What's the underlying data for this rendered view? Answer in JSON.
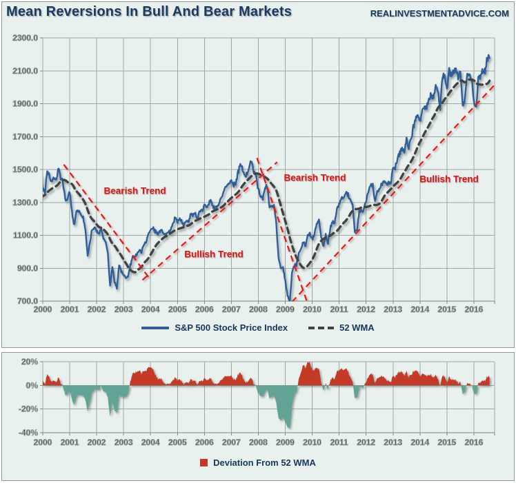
{
  "header": {
    "watermark": "REALINVESTMENTADVICE.COM"
  },
  "chart_data": [
    {
      "type": "line",
      "title": "Mean Reversions In Bull And Bear Markets",
      "x_unit": "monthly points, Jan 2000 - Aug 2016",
      "x_tick_labels": [
        "2000",
        "2001",
        "2002",
        "2003",
        "2004",
        "2005",
        "2006",
        "2007",
        "2008",
        "2009",
        "2010",
        "2011",
        "2012",
        "2013",
        "2014",
        "2015",
        "2016"
      ],
      "y_tick_labels": [
        "2300.0",
        "2100.0",
        "1900.0",
        "1700.0",
        "1500.0",
        "1300.0",
        "1100.0",
        "900.0",
        "700.0"
      ],
      "ylim": [
        700,
        2300
      ],
      "xlim_years_after_2000": [
        0,
        16.77
      ],
      "grid": true,
      "legend_position": "bottom-center",
      "series": [
        {
          "name": "S&P 500 Stock Price Index",
          "color": "#2f5e9b",
          "monthly_close": [
            1394,
            1366,
            1499,
            1452,
            1421,
            1455,
            1431,
            1518,
            1437,
            1429,
            1315,
            1320,
            1366,
            1240,
            1160,
            1249,
            1256,
            1224,
            1211,
            1134,
            970,
            1060,
            1139,
            1148,
            1130,
            1107,
            1147,
            1077,
            1067,
            990,
            790,
            912,
            815,
            778,
            920,
            880,
            856,
            841,
            848,
            917,
            964,
            975,
            990,
            1008,
            996,
            1051,
            1058,
            1112,
            1131,
            1145,
            1126,
            1107,
            1121,
            1141,
            1102,
            1104,
            1115,
            1130,
            1174,
            1212,
            1181,
            1204,
            1181,
            1157,
            1192,
            1191,
            1234,
            1220,
            1229,
            1207,
            1249,
            1248,
            1280,
            1281,
            1295,
            1311,
            1270,
            1270,
            1277,
            1304,
            1336,
            1378,
            1401,
            1418,
            1438,
            1407,
            1421,
            1482,
            1531,
            1503,
            1455,
            1474,
            1527,
            1549,
            1481,
            1468,
            1379,
            1331,
            1323,
            1386,
            1400,
            1280,
            1267,
            1283,
            1166,
            969,
            896,
            903,
            826,
            735,
            690,
            873,
            919,
            919,
            987,
            1021,
            1057,
            1036,
            1096,
            1115,
            1074,
            1104,
            1169,
            1187,
            1089,
            1031,
            1102,
            1049,
            1141,
            1183,
            1181,
            1258,
            1286,
            1327,
            1326,
            1364,
            1345,
            1321,
            1292,
            1123,
            1131,
            1253,
            1247,
            1258,
            1312,
            1366,
            1408,
            1398,
            1310,
            1362,
            1379,
            1407,
            1441,
            1412,
            1416,
            1426,
            1498,
            1515,
            1569,
            1598,
            1631,
            1606,
            1686,
            1633,
            1682,
            1757,
            1806,
            1848,
            1783,
            1859,
            1872,
            1884,
            1924,
            1960,
            1931,
            2003,
            1972,
            1880,
            2068,
            2059,
            1995,
            2105,
            2068,
            2086,
            2107,
            2063,
            2104,
            1890,
            1920,
            2079,
            2080,
            2044,
            1920,
            1865,
            2060,
            2065,
            2097,
            2099,
            2174,
            2183
          ]
        },
        {
          "name": "52 WMA",
          "color": "#424242",
          "style": "dashed",
          "derivation": "trailing 52-week moving average of the S&P 500 series",
          "warmup_1999_monthly": [
            1280,
            1238,
            1286,
            1335,
            1302,
            1373,
            1329,
            1320,
            1283,
            1363,
            1389,
            1469
          ]
        }
      ],
      "trend_lines": [
        {
          "label": "Bearish Trend",
          "color": "#fb1010",
          "from": [
            0.78,
            1530
          ],
          "to": [
            3.93,
            845
          ]
        },
        {
          "label": "Bullish Trend",
          "color": "#fb1010",
          "from": [
            3.7,
            828
          ],
          "to": [
            8.7,
            1545
          ]
        },
        {
          "label": "Bearish Trend",
          "color": "#fb1010",
          "from": [
            7.95,
            1570
          ],
          "to": [
            9.8,
            700
          ]
        },
        {
          "label": "Bullish Trend",
          "color": "#fb1010",
          "from": [
            9.25,
            695
          ],
          "to": [
            16.8,
            2020
          ]
        }
      ],
      "annotations": [
        {
          "label": "Bearish Trend",
          "t": 3.42,
          "value": 1372
        },
        {
          "label": "Bullish Trend",
          "t": 6.35,
          "value": 985
        },
        {
          "label": "Bearish Trend",
          "t": 10.1,
          "value": 1450
        },
        {
          "label": "Bullish Trend",
          "t": 15.08,
          "value": 1440
        }
      ]
    },
    {
      "type": "area",
      "name": "Deviation From 52 WMA",
      "derivation": "(S&P 500 / 52 WMA - 1) * 100, computed from the series above",
      "ylim": [
        -40,
        20
      ],
      "y_tick_labels": [
        "20%",
        "0%",
        "-20%",
        "-40%"
      ],
      "x_tick_labels": [
        "2000",
        "2001",
        "2002",
        "2003",
        "2004",
        "2005",
        "2006",
        "2007",
        "2008",
        "2009",
        "2010",
        "2011",
        "2012",
        "2013",
        "2014",
        "2015",
        "2016"
      ],
      "positive_color": "#c43a26",
      "negative_color": "#61a394",
      "grid": true
    }
  ]
}
